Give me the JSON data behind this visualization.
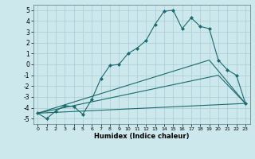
{
  "title": "",
  "xlabel": "Humidex (Indice chaleur)",
  "background_color": "#cce8ec",
  "line_color": "#1a6b6b",
  "grid_color": "#aaccd4",
  "xlim": [
    -0.5,
    23.5
  ],
  "ylim": [
    -5.5,
    5.5
  ],
  "xticks": [
    0,
    1,
    2,
    3,
    4,
    5,
    6,
    7,
    8,
    9,
    10,
    11,
    12,
    13,
    14,
    15,
    16,
    17,
    18,
    19,
    20,
    21,
    22,
    23
  ],
  "yticks": [
    -5,
    -4,
    -3,
    -2,
    -1,
    0,
    1,
    2,
    3,
    4,
    5
  ],
  "main_line": {
    "x": [
      0,
      1,
      2,
      3,
      4,
      5,
      6,
      7,
      8,
      9,
      10,
      11,
      12,
      13,
      14,
      15,
      16,
      17,
      18,
      19,
      20,
      21,
      22,
      23
    ],
    "y": [
      -4.5,
      -5.0,
      -4.3,
      -3.8,
      -3.9,
      -4.6,
      -3.2,
      -1.3,
      -0.1,
      0.0,
      1.0,
      1.5,
      2.2,
      3.7,
      4.9,
      5.0,
      3.3,
      4.3,
      3.5,
      3.3,
      0.4,
      -0.5,
      -1.0,
      -3.6
    ]
  },
  "line2": {
    "x": [
      0,
      19,
      23
    ],
    "y": [
      -4.5,
      0.4,
      -3.6
    ]
  },
  "line3": {
    "x": [
      0,
      20,
      23
    ],
    "y": [
      -4.5,
      -1.0,
      -3.6
    ]
  },
  "line4": {
    "x": [
      0,
      23
    ],
    "y": [
      -4.5,
      -3.6
    ]
  }
}
